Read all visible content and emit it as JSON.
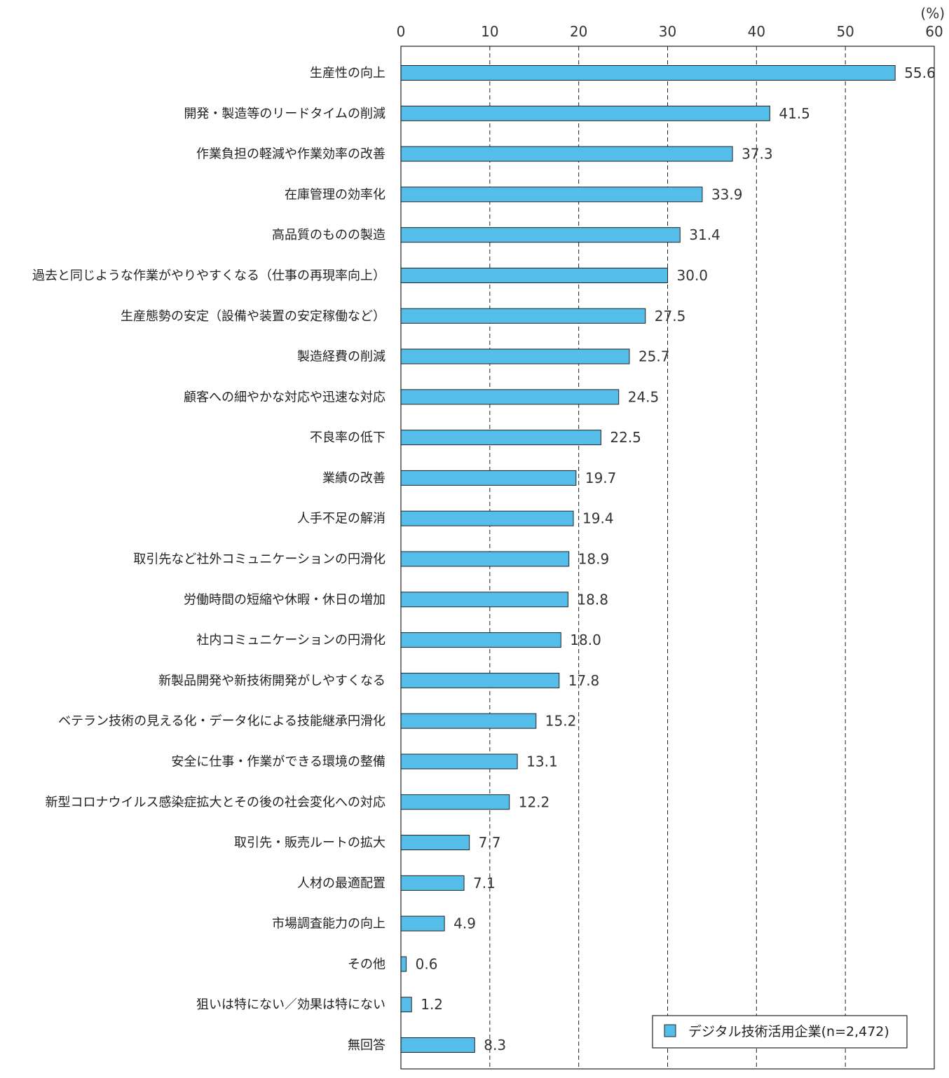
{
  "chart_data": {
    "type": "bar",
    "orientation": "horizontal",
    "unit_label": "(%)",
    "xlim": [
      0,
      60
    ],
    "xticks": [
      0,
      10,
      20,
      30,
      40,
      50,
      60
    ],
    "grid": "vertical dashed",
    "legend_position": "bottom-right",
    "bar_color": "#55bdea",
    "categories": [
      "生産性の向上",
      "開発・製造等のリードタイムの削減",
      "作業負担の軽減や作業効率の改善",
      "在庫管理の効率化",
      "高品質のものの製造",
      "過去と同じような作業がやりやすくなる（仕事の再現率向上）",
      "生産態勢の安定（設備や装置の安定稼働など）",
      "製造経費の削減",
      "顧客への細やかな対応や迅速な対応",
      "不良率の低下",
      "業績の改善",
      "人手不足の解消",
      "取引先など社外コミュニケーションの円滑化",
      "労働時間の短縮や休暇・休日の増加",
      "社内コミュニケーションの円滑化",
      "新製品開発や新技術開発がしやすくなる",
      "ベテラン技術の見える化・データ化による技能継承円滑化",
      "安全に仕事・作業ができる環境の整備",
      "新型コロナウイルス感染症拡大とその後の社会変化への対応",
      "取引先・販売ルートの拡大",
      "人材の最適配置",
      "市場調査能力の向上",
      "その他",
      "狙いは特にない／効果は特にない",
      "無回答"
    ],
    "series": [
      {
        "name": "デジタル技術活用企業(n=2,472)",
        "values": [
          55.6,
          41.5,
          37.3,
          33.9,
          31.4,
          30.0,
          27.5,
          25.7,
          24.5,
          22.5,
          19.7,
          19.4,
          18.9,
          18.8,
          18.0,
          17.8,
          15.2,
          13.1,
          12.2,
          7.7,
          7.1,
          4.9,
          0.6,
          1.2,
          8.3
        ]
      }
    ]
  }
}
